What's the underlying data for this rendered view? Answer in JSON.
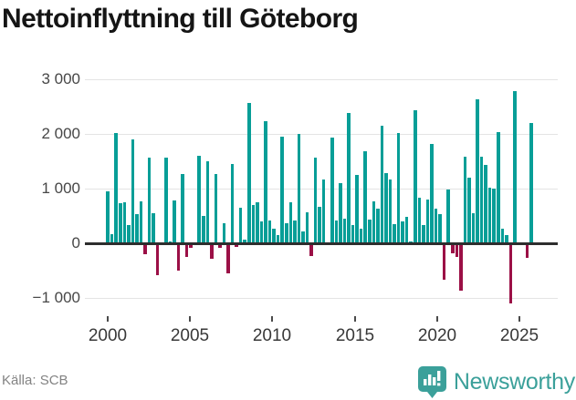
{
  "title": "Nettoinflyttning till Göteborg",
  "footer": {
    "source": "Källa: SCB",
    "brand": "Newsworthy"
  },
  "colors": {
    "positive_bar": "#079e97",
    "negative_bar": "#9b1046",
    "gridline": "#e4e4e4",
    "baseline": "#2e2e2e",
    "brand_teal": "#3ba09a"
  },
  "chart_data": {
    "type": "bar",
    "title": "Nettoinflyttning till Göteborg",
    "frequency": "quarterly",
    "period_start": "2000-Q1",
    "period_end": "2025-Q3",
    "quarter_order": [
      "Q1",
      "Q2",
      "Q3",
      "Q4"
    ],
    "ylim": [
      -1400,
      3200
    ],
    "grid": "horizontal-only",
    "legend": "none",
    "yticks": [
      {
        "value": 3000,
        "label": "3 000"
      },
      {
        "value": 2000,
        "label": "2 000"
      },
      {
        "value": 1000,
        "label": "1 000"
      },
      {
        "value": 0,
        "label": "0"
      },
      {
        "value": -1000,
        "label": "−1 000"
      }
    ],
    "xticks": [
      {
        "value": 2000,
        "label": "2000"
      },
      {
        "value": 2005,
        "label": "2005"
      },
      {
        "value": 2010,
        "label": "2010"
      },
      {
        "value": 2015,
        "label": "2015"
      },
      {
        "value": 2020,
        "label": "2020"
      },
      {
        "value": 2025,
        "label": "2025"
      }
    ],
    "values_by_year": {
      "2000": [
        950,
        170,
        2020,
        730
      ],
      "2001": [
        755,
        330,
        1900,
        540
      ],
      "2002": [
        770,
        -200,
        1575,
        550
      ],
      "2003": [
        -590,
        20,
        1560,
        30
      ],
      "2004": [
        780,
        -505,
        1260,
        -250
      ],
      "2005": [
        -90,
        10,
        1600,
        505
      ],
      "2006": [
        1500,
        -280,
        1260,
        -80
      ],
      "2007": [
        370,
        -550,
        1450,
        -70
      ],
      "2008": [
        655,
        60,
        2560,
        705
      ],
      "2009": [
        745,
        395,
        2230,
        425
      ],
      "2010": [
        260,
        150,
        1950,
        370
      ],
      "2011": [
        755,
        410,
        2000,
        215
      ],
      "2012": [
        570,
        -230,
        1560,
        660
      ],
      "2013": [
        1170,
        10,
        1930,
        425
      ],
      "2014": [
        1100,
        450,
        2390,
        340
      ],
      "2015": [
        1245,
        270,
        1690,
        440
      ],
      "2016": [
        770,
        630,
        2145,
        1285
      ],
      "2017": [
        1160,
        355,
        2020,
        395
      ],
      "2018": [
        485,
        30,
        2430,
        840
      ],
      "2019": [
        340,
        800,
        1815,
        640
      ],
      "2020": [
        535,
        -665,
        990,
        -190
      ],
      "2021": [
        -250,
        -870,
        1590,
        1200
      ],
      "2022": [
        550,
        2635,
        1585,
        1435
      ],
      "2023": [
        1010,
        1000,
        2040,
        275
      ],
      "2024": [
        155,
        -1100,
        2790,
        20
      ],
      "2025": [
        10,
        -265,
        2200
      ]
    }
  },
  "layout_note": "net migration per quarter, teal = positive, dark red = negative"
}
